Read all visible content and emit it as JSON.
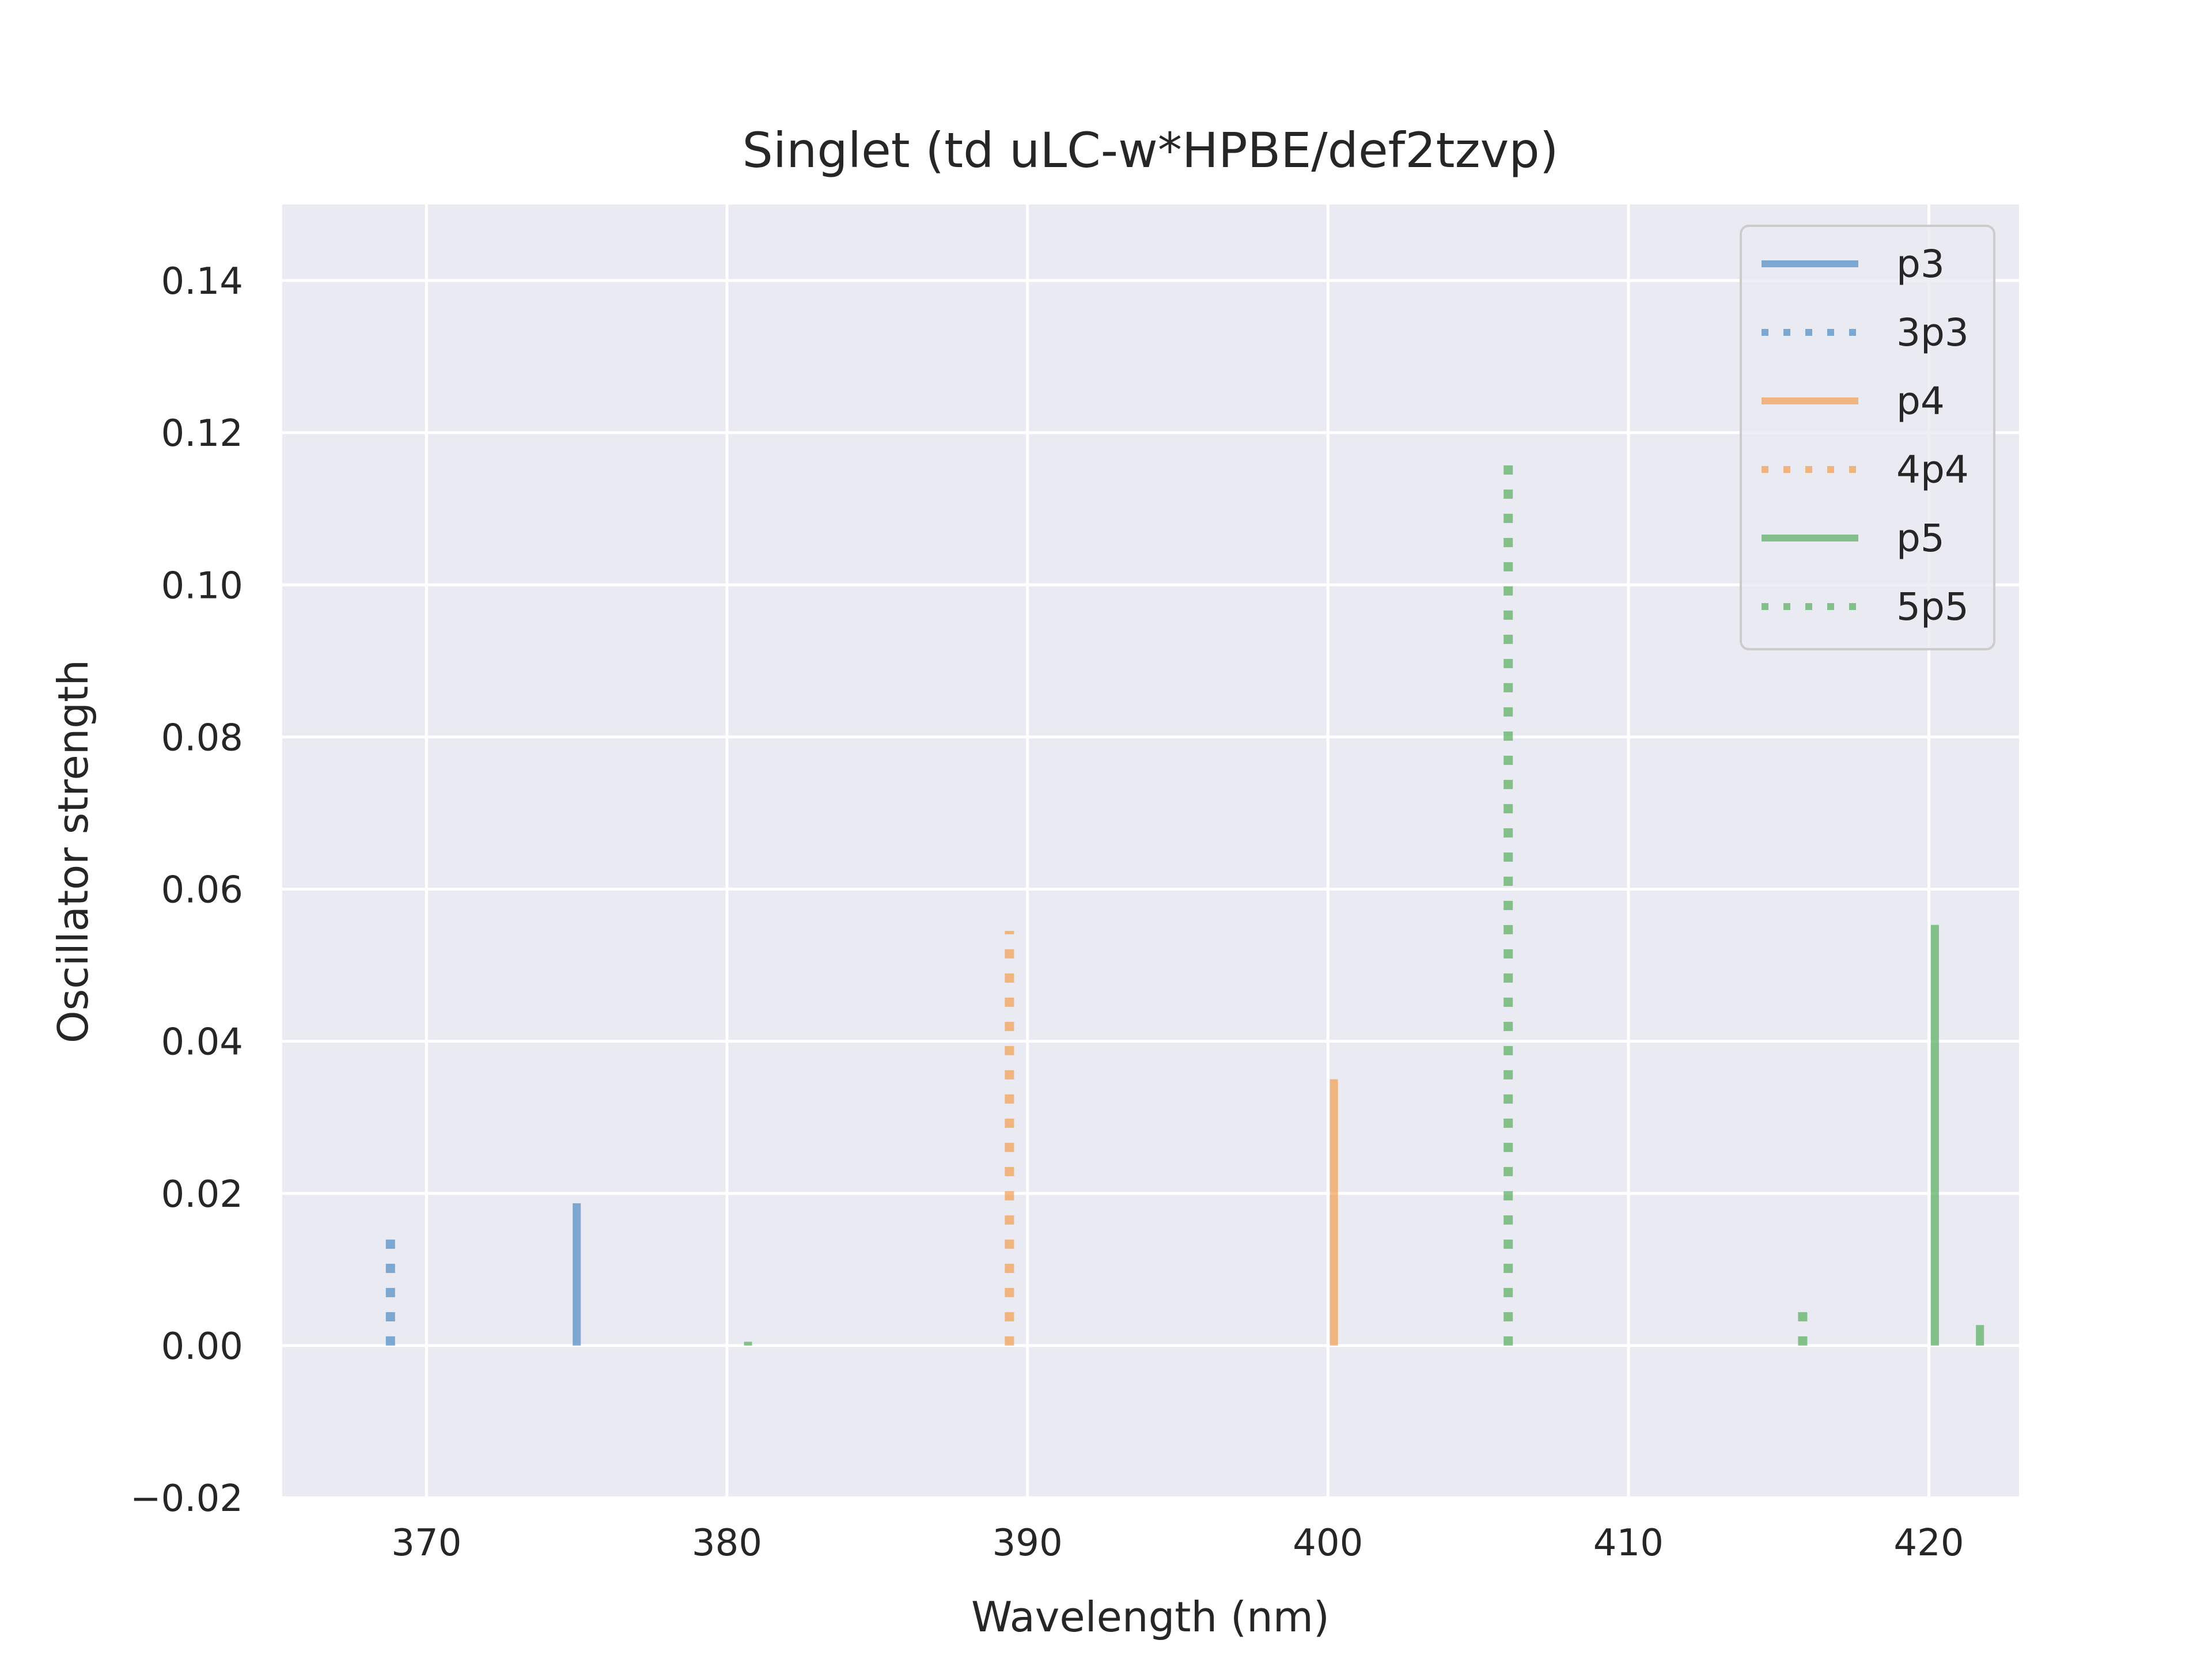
{
  "chart_data": {
    "type": "bar",
    "title": "Singlet (td uLC-w*HPBE/def2tzvp)",
    "xlabel": "Wavelength (nm)",
    "ylabel": "Oscillator strength",
    "xlim": [
      365.2,
      423.0
    ],
    "ylim": [
      -0.02,
      0.15
    ],
    "xticks": [
      370,
      380,
      390,
      400,
      410,
      420
    ],
    "yticks": [
      -0.02,
      0.0,
      0.02,
      0.04,
      0.06,
      0.08,
      0.1,
      0.12,
      0.14
    ],
    "grid": true,
    "legend_position": "top-right",
    "colors": {
      "background": "#eaeaf2",
      "grid": "#ffffff",
      "blue": "#4c8ac2",
      "orange": "#f29d4f",
      "green": "#56ad5c"
    },
    "series": [
      {
        "name": "p3",
        "style": "solid",
        "color": "#4c8ac2",
        "points": [
          {
            "x": 375.0,
            "y": 0.0187
          }
        ]
      },
      {
        "name": "3p3",
        "style": "dotted",
        "color": "#4c8ac2",
        "points": [
          {
            "x": 368.8,
            "y": 0.0148
          }
        ]
      },
      {
        "name": "p4",
        "style": "solid",
        "color": "#f29d4f",
        "points": [
          {
            "x": 400.2,
            "y": 0.035
          }
        ]
      },
      {
        "name": "4p4",
        "style": "dotted",
        "color": "#f29d4f",
        "points": [
          {
            "x": 389.4,
            "y": 0.0545
          }
        ]
      },
      {
        "name": "p5",
        "style": "solid",
        "color": "#56ad5c",
        "points": [
          {
            "x": 380.7,
            "y": 0.0005
          },
          {
            "x": 420.2,
            "y": 0.0553
          },
          {
            "x": 421.7,
            "y": 0.0027
          }
        ]
      },
      {
        "name": "5p5",
        "style": "dotted",
        "color": "#56ad5c",
        "points": [
          {
            "x": 406.0,
            "y": 0.116
          },
          {
            "x": 415.8,
            "y": 0.0047
          }
        ]
      }
    ]
  }
}
